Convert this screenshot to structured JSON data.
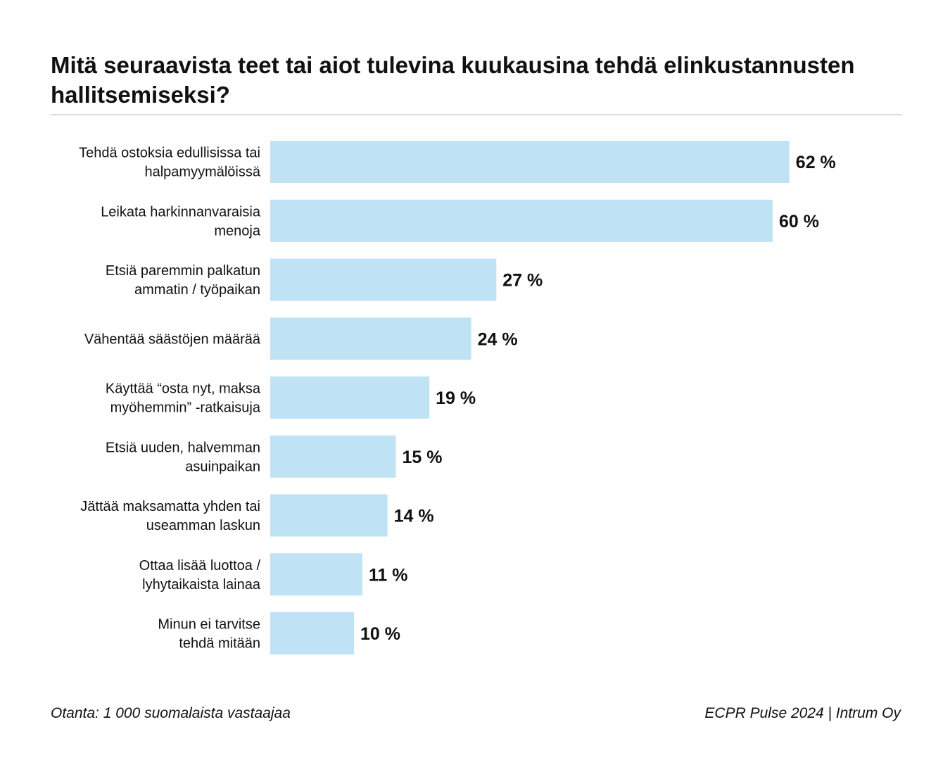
{
  "chart_data": {
    "type": "bar",
    "orientation": "horizontal",
    "title": "Mitä seuraavista teet tai aiot tulevina kuukausina tehdä elinkustannusten hallitsemiseksi?",
    "categories": [
      [
        "Tehdä ostoksia edullisissa tai",
        "halpamyymälöissä"
      ],
      [
        "Leikata harkinnanvaraisia",
        "menoja"
      ],
      [
        "Etsiä paremmin palkatun",
        "ammatin / työpaikan"
      ],
      [
        "Vähentää säästöjen määrää"
      ],
      [
        "Käyttää “osta nyt, maksa",
        "myöhemmin” -ratkaisuja"
      ],
      [
        "Etsiä uuden, halvemman",
        "asuinpaikan"
      ],
      [
        "Jättää maksamatta yhden tai",
        "useamman laskun"
      ],
      [
        "Ottaa lisää luottoa /",
        "lyhytaikaista lainaa"
      ],
      [
        "Minun ei tarvitse",
        "tehdä mitään"
      ]
    ],
    "values": [
      62,
      60,
      27,
      24,
      19,
      15,
      14,
      11,
      10
    ],
    "value_labels": [
      "62 %",
      "60 %",
      "27 %",
      "24 %",
      "19 %",
      "15 %",
      "14 %",
      "11 %",
      "10 %"
    ],
    "unit": "%",
    "bar_color": "#c0e2f5",
    "grid": false,
    "legend": "none"
  },
  "footer": {
    "left": "Otanta: 1 000 suomalaista vastaajaa",
    "right": "ECPR Pulse 2024 | Intrum Oy"
  }
}
